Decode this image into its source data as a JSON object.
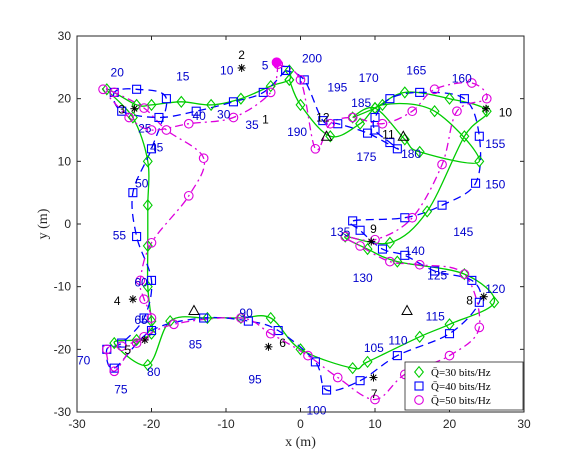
{
  "chart_data": {
    "type": "line",
    "title": "",
    "xlabel": "x (m)",
    "ylabel": "y (m)",
    "xlim": [
      -30,
      30
    ],
    "ylim": [
      -30,
      30
    ],
    "xticks": [
      -30,
      -20,
      -10,
      0,
      10,
      20,
      30
    ],
    "yticks": [
      -30,
      -20,
      -10,
      0,
      10,
      20,
      30
    ],
    "grid": false,
    "legend_position": "bottom-right",
    "colors": {
      "q30": "#00cc00",
      "q40": "#0000ff",
      "q50": "#dd00dd",
      "start": "#ee00ee",
      "labels": "#0000cc"
    },
    "series": [
      {
        "name": "Q̄=30 bits/Hz",
        "style": "solid",
        "marker": "diamond",
        "x": [
          -1.5,
          -1.5,
          -4,
          -8,
          -12,
          -16,
          -20,
          -22,
          -26,
          -22.5,
          -20.5,
          -20.5,
          -20.5,
          -20.5,
          -20,
          -20,
          -22,
          -25,
          -20.5,
          -17.5,
          -12.5,
          -8,
          -4,
          0,
          7,
          9,
          16,
          20,
          26,
          22,
          13,
          9,
          6,
          12,
          17,
          22,
          25,
          20,
          14,
          10,
          7,
          10,
          14,
          16,
          24,
          18,
          11,
          8,
          4,
          0,
          -1.5
        ],
        "y": [
          24.5,
          23,
          22,
          20,
          19,
          19.5,
          19,
          19,
          21.5,
          17,
          10,
          3,
          -3.5,
          -10,
          -15.5,
          -17.5,
          -18.5,
          -19,
          -22.5,
          -15.5,
          -15,
          -15,
          -15,
          -20,
          -23,
          -22,
          -18,
          -16,
          -12.5,
          -8,
          -6,
          -4,
          -2,
          -3,
          2,
          14,
          18,
          20,
          21,
          18.5,
          17,
          18.5,
          13.5,
          11.5,
          10,
          18,
          19,
          16,
          14,
          19,
          23
        ],
        "marker_every": 1
      },
      {
        "name": "Q̄=40 bits/Hz",
        "style": "dashed",
        "marker": "square",
        "x": [
          -2,
          -5,
          -9,
          -14,
          -19,
          -24,
          -25,
          -22,
          -18,
          -20,
          -22.5,
          -22,
          -20,
          -21,
          -24,
          -26,
          -25,
          -20,
          -13,
          -7,
          -3,
          2,
          3.5,
          8,
          13,
          20,
          24,
          23,
          18,
          14,
          11,
          8,
          7,
          14,
          19,
          23.5,
          24,
          22,
          16,
          12,
          10,
          10,
          12,
          13,
          9,
          5,
          3,
          0.5,
          -2
        ],
        "y": [
          24.5,
          21,
          19.5,
          18,
          17,
          18,
          21,
          21.5,
          20,
          12,
          5,
          -2,
          -9,
          -15,
          -19,
          -20,
          -23,
          -17,
          -15,
          -15.5,
          -17,
          -22,
          -26.5,
          -25,
          -21,
          -17.5,
          -12.5,
          -9,
          -7.5,
          -5,
          -4,
          -1,
          0.5,
          1,
          3,
          6.5,
          14,
          20,
          21,
          20,
          17,
          15,
          13,
          12,
          14.5,
          16,
          16.5,
          23,
          24.5
        ],
        "marker_every": 1
      },
      {
        "name": "Q̄=50 bits/Hz",
        "style": "dashdot",
        "marker": "circle",
        "x": [
          -3,
          -4,
          -9,
          -15,
          -20,
          -23,
          -26.5,
          -25,
          -21,
          -18,
          -13,
          -15,
          -20,
          -21.5,
          -21,
          -20,
          -21,
          -24,
          -26,
          -25,
          -22,
          -17,
          -8,
          -4,
          1,
          5,
          10,
          14,
          20,
          24,
          22,
          16,
          12,
          8,
          6,
          10,
          15,
          19,
          21,
          25,
          23,
          18,
          15,
          11,
          7,
          4,
          2,
          0,
          -3
        ],
        "y": [
          25.5,
          21,
          17,
          16,
          15,
          17,
          21.5,
          21,
          18.5,
          15,
          10.5,
          4.5,
          -3,
          -9,
          -12,
          -15,
          -18,
          -19.5,
          -20,
          -23.5,
          -19,
          -16,
          -15,
          -17.5,
          -21,
          -24.5,
          -28,
          -24,
          -21,
          -16.5,
          -8,
          -6.5,
          -6,
          -3.5,
          -2,
          -2.5,
          1,
          9.5,
          18,
          20,
          22.5,
          21.5,
          18,
          16,
          17,
          16,
          12,
          23,
          25.5
        ],
        "marker_every": 1
      }
    ],
    "index_labels": [
      {
        "text": "5",
        "x": -5.2,
        "y": 25.3
      },
      {
        "text": "10",
        "x": -10.8,
        "y": 24.5
      },
      {
        "text": "15",
        "x": -16.7,
        "y": 23.5
      },
      {
        "text": "20",
        "x": -25.5,
        "y": 24.2
      },
      {
        "text": "25",
        "x": -21.8,
        "y": 15.2
      },
      {
        "text": "30",
        "x": -11.2,
        "y": 17.5
      },
      {
        "text": "35",
        "x": -7.4,
        "y": 15.8
      },
      {
        "text": "40",
        "x": -14.5,
        "y": 17.2
      },
      {
        "text": "45",
        "x": -20.2,
        "y": 12.2
      },
      {
        "text": "50",
        "x": -22.2,
        "y": 6.5
      },
      {
        "text": "55",
        "x": -25.2,
        "y": -1.8
      },
      {
        "text": "60",
        "x": -22.3,
        "y": -9.3
      },
      {
        "text": "65",
        "x": -22.3,
        "y": -15.3
      },
      {
        "text": "70",
        "x": -30.0,
        "y": -21.8
      },
      {
        "text": "75",
        "x": -25.0,
        "y": -26.4
      },
      {
        "text": "80",
        "x": -20.6,
        "y": -23.6
      },
      {
        "text": "85",
        "x": -15.0,
        "y": -19.2
      },
      {
        "text": "90",
        "x": -8.2,
        "y": -14.2
      },
      {
        "text": "95",
        "x": -7.0,
        "y": -24.8
      },
      {
        "text": "100",
        "x": 0.8,
        "y": -29.8
      },
      {
        "text": "105",
        "x": 8.5,
        "y": -19.8
      },
      {
        "text": "110",
        "x": 11.8,
        "y": -18.6
      },
      {
        "text": "115",
        "x": 16.8,
        "y": -14.8
      },
      {
        "text": "120",
        "x": 24.8,
        "y": -10.4
      },
      {
        "text": "125",
        "x": 17.0,
        "y": -8.2
      },
      {
        "text": "130",
        "x": 7.0,
        "y": -8.6
      },
      {
        "text": "135",
        "x": 4.0,
        "y": -1.3
      },
      {
        "text": "140",
        "x": 14.0,
        "y": -4.3
      },
      {
        "text": "145",
        "x": 20.5,
        "y": -1.3
      },
      {
        "text": "150",
        "x": 24.8,
        "y": 6.3
      },
      {
        "text": "155",
        "x": 24.8,
        "y": 12.8
      },
      {
        "text": "160",
        "x": 20.3,
        "y": 23.2
      },
      {
        "text": "165",
        "x": 14.2,
        "y": 24.5
      },
      {
        "text": "170",
        "x": 7.8,
        "y": 23.3
      },
      {
        "text": "175",
        "x": 7.5,
        "y": 10.7
      },
      {
        "text": "180",
        "x": 13.5,
        "y": 11.2
      },
      {
        "text": "185",
        "x": 6.8,
        "y": 19.3
      },
      {
        "text": "190",
        "x": -1.8,
        "y": 14.7
      },
      {
        "text": "195",
        "x": 3.6,
        "y": 21.8
      },
      {
        "text": "200",
        "x": 0.2,
        "y": 26.4
      }
    ],
    "nodes": [
      {
        "id": "1",
        "x": -5.5,
        "y": 16.4,
        "marker": "none",
        "label_dx": 0.8,
        "label_dy": 0.3
      },
      {
        "id": "2",
        "x": -7.9,
        "y": 24.9,
        "marker": "asterisk",
        "label_dx": 0.0,
        "label_dy": 2.1
      },
      {
        "id": "3",
        "x": -22.3,
        "y": 18.4,
        "marker": "asterisk",
        "label_dx": -1.7,
        "label_dy": -0.1
      },
      {
        "id": "4",
        "x": -22.5,
        "y": -12.0,
        "marker": "asterisk",
        "label_dx": -2.1,
        "label_dy": -0.3
      },
      {
        "id": "5",
        "x": -20.9,
        "y": -18.5,
        "marker": "asterisk",
        "label_dx": -2.3,
        "label_dy": -1.6
      },
      {
        "id": "6",
        "x": -4.3,
        "y": -19.6,
        "marker": "asterisk",
        "label_dx": 1.9,
        "label_dy": 0.6
      },
      {
        "id": "7",
        "x": 9.8,
        "y": -24.5,
        "marker": "asterisk",
        "label_dx": 0.1,
        "label_dy": -2.6
      },
      {
        "id": "8",
        "x": 24.6,
        "y": -11.6,
        "marker": "asterisk",
        "label_dx": -1.9,
        "label_dy": -0.6
      },
      {
        "id": "9",
        "x": 9.5,
        "y": -2.8,
        "marker": "asterisk",
        "label_dx": 0.3,
        "label_dy": 2.0
      },
      {
        "id": "10",
        "x": 24.9,
        "y": 18.4,
        "marker": "asterisk",
        "label_dx": 2.6,
        "label_dy": -0.6
      },
      {
        "id": "11",
        "x": 13.8,
        "y": 14.0,
        "marker": "triangle",
        "label_dx": -2.0,
        "label_dy": 0.3
      },
      {
        "id": "12",
        "x": 3.5,
        "y": 14.0,
        "marker": "triangle",
        "label_dx": -0.5,
        "label_dy": 3.0
      },
      {
        "id": "",
        "x": -14.3,
        "y": -13.8,
        "marker": "triangle",
        "label_dx": 0,
        "label_dy": 0
      },
      {
        "id": "",
        "x": 14.3,
        "y": -13.8,
        "marker": "triangle",
        "label_dx": 0,
        "label_dy": 0
      }
    ],
    "start_point": {
      "x": -3.2,
      "y": 25.8
    }
  }
}
